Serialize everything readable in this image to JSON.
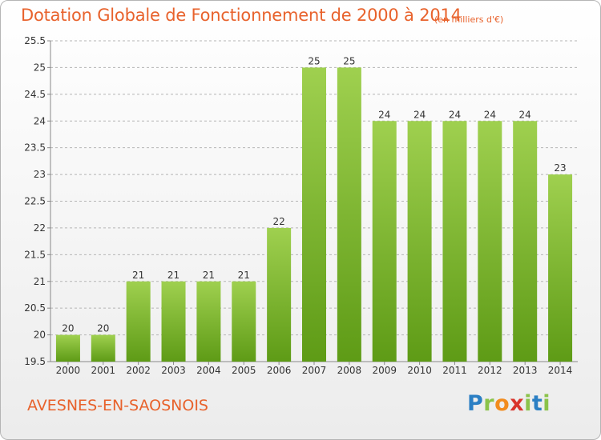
{
  "header": {
    "title": "Dotation Globale de Fonctionnement de 2000 à 2014",
    "unit": "(en milliers d'€)"
  },
  "footer": {
    "place": "AVESNES-EN-SAOSNOIS",
    "logo_letters": [
      "P",
      "r",
      "o",
      "x",
      "i",
      "t",
      "i"
    ],
    "logo_colors": [
      "#2b7fc4",
      "#8bc34a",
      "#f28c1e",
      "#d9342b",
      "#8bc34a",
      "#2b7fc4",
      "#8bc34a"
    ]
  },
  "colors": {
    "title": "#e8622c",
    "bar_light": "#9fd04f",
    "bar_dark": "#5e9b16",
    "grid": "#b5b5b5"
  },
  "chart_data": {
    "type": "bar",
    "categories": [
      "2000",
      "2001",
      "2002",
      "2003",
      "2004",
      "2005",
      "2006",
      "2007",
      "2008",
      "2009",
      "2010",
      "2011",
      "2012",
      "2013",
      "2014"
    ],
    "values": [
      20,
      20,
      21,
      21,
      21,
      21,
      22,
      25,
      25,
      24,
      24,
      24,
      24,
      24,
      23
    ],
    "value_labels": [
      "20",
      "20",
      "21",
      "21",
      "21",
      "21",
      "22",
      "25",
      "25",
      "24",
      "24",
      "24",
      "24",
      "24",
      "23"
    ],
    "title": "Dotation Globale de Fonctionnement de 2000 à 2014",
    "xlabel": "",
    "ylabel": "",
    "ylim": [
      19.5,
      25.5
    ],
    "yticks": [
      19.5,
      20,
      20.5,
      21,
      21.5,
      22,
      22.5,
      23,
      23.5,
      24,
      24.5,
      25,
      25.5
    ],
    "ytick_labels": [
      "19.5",
      "20",
      "20.5",
      "21",
      "21.5",
      "22",
      "22.5",
      "23",
      "23.5",
      "24",
      "24.5",
      "25",
      "25.5"
    ],
    "grid": true,
    "legend": "none"
  }
}
